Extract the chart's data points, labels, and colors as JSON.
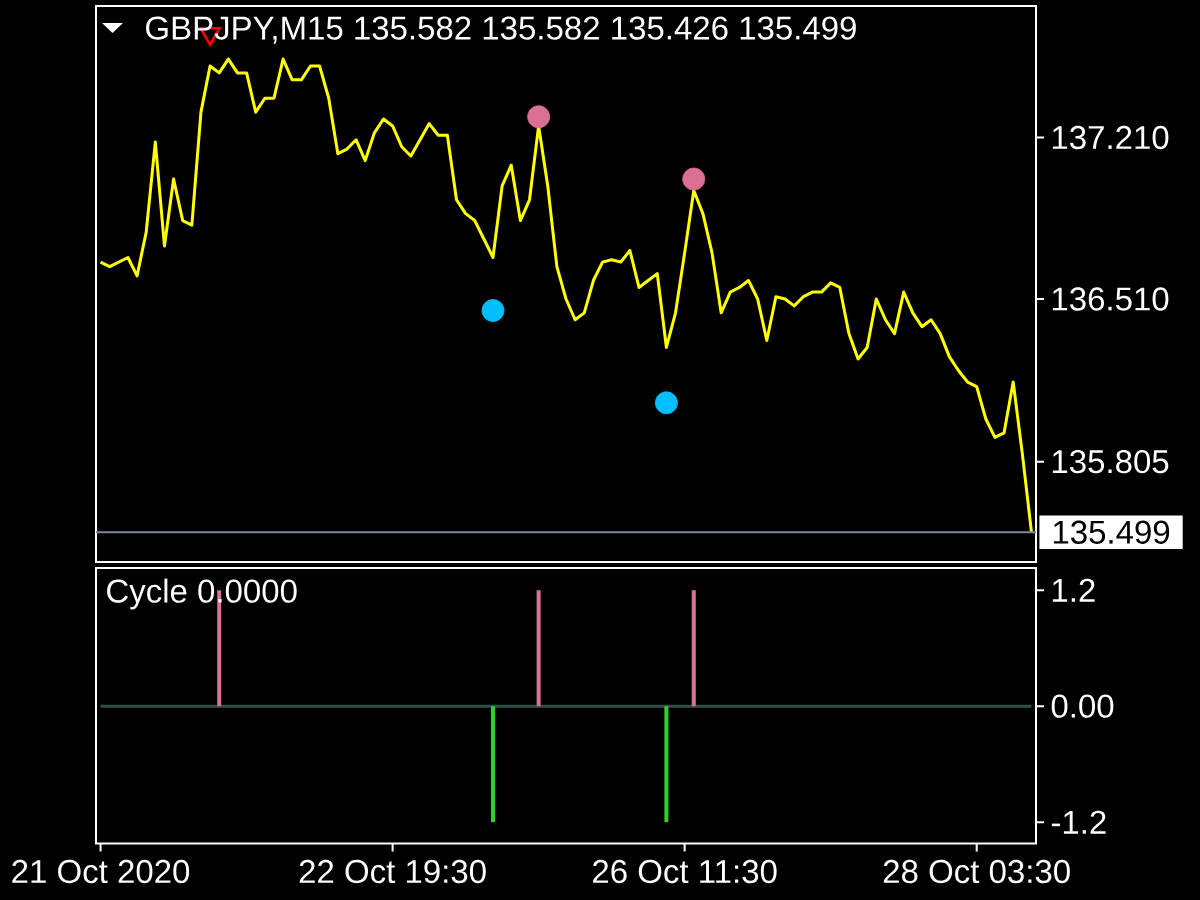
{
  "chart_data": [
    {
      "type": "line",
      "title": "GBPJPY,M15 135.582 135.582 135.426 135.499",
      "ylim": [
        135.37,
        137.78
      ],
      "categories": [
        null,
        null,
        null,
        null,
        null,
        null,
        null,
        null,
        null,
        null,
        null,
        null,
        null,
        null,
        null,
        null,
        null,
        null,
        null,
        null,
        null,
        null,
        null,
        null,
        null,
        null,
        null,
        null,
        null,
        null,
        null,
        null,
        null,
        null,
        null,
        null,
        null,
        null,
        null,
        null,
        null,
        null,
        null,
        null,
        null,
        null,
        null,
        null,
        null,
        null,
        null,
        null,
        null,
        null,
        null,
        null,
        null,
        null,
        null,
        null,
        null,
        null,
        null,
        null,
        null,
        null,
        null,
        null,
        null,
        null,
        null,
        null,
        null,
        null,
        null,
        null,
        null,
        null,
        null,
        null,
        null,
        null,
        null,
        null,
        null,
        null,
        null,
        null,
        null,
        null,
        null,
        null,
        null,
        null,
        null,
        null,
        null,
        null,
        null,
        null,
        null,
        null,
        null
      ],
      "yticks": [
        {
          "value": 137.21,
          "label": "137.210"
        },
        {
          "value": 136.51,
          "label": "136.510"
        },
        {
          "value": 135.805,
          "label": "135.805"
        }
      ],
      "ref_lines": [
        {
          "axis": "y",
          "value": 135.499,
          "label": "135.499",
          "color": "#778899"
        }
      ],
      "series": [
        {
          "color": "#ffff00",
          "values": [
            136.67,
            136.65,
            136.67,
            136.69,
            136.61,
            136.8,
            137.19,
            136.74,
            137.03,
            136.85,
            136.83,
            137.32,
            137.52,
            137.49,
            137.55,
            137.49,
            137.49,
            137.32,
            137.38,
            137.38,
            137.55,
            137.46,
            137.46,
            137.52,
            137.52,
            137.38,
            137.14,
            137.16,
            137.2,
            137.11,
            137.23,
            137.29,
            137.26,
            137.17,
            137.13,
            137.2,
            137.27,
            137.22,
            137.22,
            136.94,
            136.88,
            136.85,
            136.77,
            136.69,
            137.0,
            137.09,
            136.85,
            136.94,
            137.26,
            137.0,
            136.65,
            136.51,
            136.42,
            136.45,
            136.59,
            136.67,
            136.68,
            136.67,
            136.72,
            136.56,
            136.59,
            136.62,
            136.3,
            136.45,
            136.71,
            136.98,
            136.88,
            136.71,
            136.45,
            136.54,
            136.56,
            136.59,
            136.51,
            136.33,
            136.52,
            136.51,
            136.48,
            136.52,
            136.54,
            136.54,
            136.58,
            136.56,
            136.36,
            136.25,
            136.3,
            136.51,
            136.42,
            136.36,
            136.54,
            136.45,
            136.39,
            136.42,
            136.36,
            136.26,
            136.2,
            136.15,
            136.13,
            135.99,
            135.91,
            135.93,
            136.15,
            135.84,
            135.5
          ]
        },
        {
          "type": "scatter",
          "color": "#db7093",
          "marker": "circle",
          "values": [
            null,
            null,
            null,
            null,
            null,
            null,
            null,
            null,
            null,
            null,
            null,
            null,
            null,
            null,
            null,
            null,
            null,
            null,
            null,
            null,
            null,
            null,
            null,
            null,
            null,
            null,
            null,
            null,
            null,
            null,
            null,
            null,
            null,
            null,
            null,
            null,
            null,
            null,
            null,
            null,
            null,
            null,
            null,
            null,
            null,
            null,
            null,
            null,
            137.3,
            null,
            null,
            null,
            null,
            null,
            null,
            null,
            null,
            null,
            null,
            null,
            null,
            null,
            null,
            null,
            null,
            137.03,
            null,
            null,
            null,
            null,
            null,
            null,
            null,
            null,
            null,
            null,
            null,
            null,
            null,
            null,
            null,
            null,
            null,
            null,
            null,
            null,
            null,
            null,
            null,
            null,
            null,
            null,
            null,
            null,
            null,
            null,
            null,
            null,
            null,
            null,
            null,
            null,
            null
          ]
        },
        {
          "type": "scatter",
          "color": "#00bfff",
          "marker": "circle",
          "values": [
            null,
            null,
            null,
            null,
            null,
            null,
            null,
            null,
            null,
            null,
            null,
            null,
            null,
            null,
            null,
            null,
            null,
            null,
            null,
            null,
            null,
            null,
            null,
            null,
            null,
            null,
            null,
            null,
            null,
            null,
            null,
            null,
            null,
            null,
            null,
            null,
            null,
            null,
            null,
            null,
            null,
            null,
            null,
            136.46,
            null,
            null,
            null,
            null,
            null,
            null,
            null,
            null,
            null,
            null,
            null,
            null,
            null,
            null,
            null,
            null,
            null,
            null,
            136.06,
            null,
            null,
            null,
            null,
            null,
            null,
            null,
            null,
            null,
            null,
            null,
            null,
            null,
            null,
            null,
            null,
            null,
            null,
            null,
            null,
            null,
            null,
            null,
            null,
            null,
            null,
            null,
            null,
            null,
            null,
            null,
            null,
            null,
            null,
            null,
            null,
            null,
            null,
            null,
            null
          ]
        },
        {
          "type": "scatter",
          "color": "#ff0000",
          "marker": "triangle",
          "values": [
            null,
            null,
            null,
            null,
            null,
            null,
            null,
            null,
            null,
            null,
            null,
            null,
            137.66,
            null,
            null,
            null,
            null,
            null,
            null,
            null,
            null,
            null,
            null,
            null,
            null,
            null,
            null,
            null,
            null,
            null,
            null,
            null,
            null,
            null,
            null,
            null,
            null,
            null,
            null,
            null,
            null,
            null,
            null,
            null,
            null,
            null,
            null,
            null,
            null,
            null,
            null,
            null,
            null,
            null,
            null,
            null,
            null,
            null,
            null,
            null,
            null,
            null,
            null,
            null,
            null,
            null,
            null,
            null,
            null,
            null,
            null,
            null,
            null,
            null,
            null,
            null,
            null,
            null,
            null,
            null,
            null,
            null,
            null,
            null,
            null,
            null,
            null,
            null,
            null,
            null,
            null,
            null,
            null,
            null,
            null,
            null,
            null,
            null,
            null,
            null,
            null,
            null,
            null
          ]
        }
      ]
    },
    {
      "type": "bar",
      "title": "Cycle 0.0000",
      "ylim": [
        -1.42,
        1.43
      ],
      "categories": [
        "21 Oct 2020",
        null,
        null,
        null,
        null,
        null,
        null,
        null,
        null,
        null,
        null,
        null,
        null,
        null,
        null,
        null,
        null,
        null,
        null,
        null,
        null,
        null,
        null,
        null,
        null,
        null,
        null,
        null,
        null,
        null,
        null,
        null,
        "22 Oct 19:30",
        null,
        null,
        null,
        null,
        null,
        null,
        null,
        null,
        null,
        null,
        null,
        null,
        null,
        null,
        null,
        null,
        null,
        null,
        null,
        null,
        null,
        null,
        null,
        null,
        null,
        null,
        null,
        null,
        null,
        null,
        null,
        "26 Oct 11:30",
        null,
        null,
        null,
        null,
        null,
        null,
        null,
        null,
        null,
        null,
        null,
        null,
        null,
        null,
        null,
        null,
        null,
        null,
        null,
        null,
        null,
        null,
        null,
        null,
        null,
        null,
        null,
        null,
        null,
        null,
        null,
        "28 Oct 03:30",
        null,
        null,
        null,
        null,
        null,
        null
      ],
      "yticks": [
        1.2,
        {
          "value": 0,
          "label": "0.00"
        },
        -1.2
      ],
      "series": [
        {
          "type": "line",
          "color": "#2f4f4f",
          "values": [
            0,
            0,
            0,
            0,
            0,
            0,
            0,
            0,
            0,
            0,
            0,
            0,
            0,
            0,
            0,
            0,
            0,
            0,
            0,
            0,
            0,
            0,
            0,
            0,
            0,
            0,
            0,
            0,
            0,
            0,
            0,
            0,
            0,
            0,
            0,
            0,
            0,
            0,
            0,
            0,
            0,
            0,
            0,
            0,
            0,
            0,
            0,
            0,
            0,
            0,
            0,
            0,
            0,
            0,
            0,
            0,
            0,
            0,
            0,
            0,
            0,
            0,
            0,
            0,
            0,
            0,
            0,
            0,
            0,
            0,
            0,
            0,
            0,
            0,
            0,
            0,
            0,
            0,
            0,
            0,
            0,
            0,
            0,
            0,
            0,
            0,
            0,
            0,
            0,
            0,
            0,
            0,
            0,
            0,
            0,
            0,
            0,
            0,
            0,
            0,
            0,
            0,
            0
          ]
        },
        {
          "color": "#db7093",
          "values": [
            null,
            null,
            null,
            null,
            null,
            null,
            null,
            null,
            null,
            null,
            null,
            null,
            null,
            1.2,
            null,
            null,
            null,
            null,
            null,
            null,
            null,
            null,
            null,
            null,
            null,
            null,
            null,
            null,
            null,
            null,
            null,
            null,
            null,
            null,
            null,
            null,
            null,
            null,
            null,
            null,
            null,
            null,
            null,
            null,
            null,
            null,
            null,
            null,
            1.2,
            null,
            null,
            null,
            null,
            null,
            null,
            null,
            null,
            null,
            null,
            null,
            null,
            null,
            null,
            null,
            null,
            1.2,
            null,
            null,
            null,
            null,
            null,
            null,
            null,
            null,
            null,
            null,
            null,
            null,
            null,
            null,
            null,
            null,
            null,
            null,
            null,
            null,
            null,
            null,
            null,
            null,
            null,
            null,
            null,
            null,
            null,
            null,
            null,
            null,
            null,
            null,
            null,
            null,
            null
          ]
        },
        {
          "color": "#32cd32",
          "values": [
            null,
            null,
            null,
            null,
            null,
            null,
            null,
            null,
            null,
            null,
            null,
            null,
            null,
            null,
            null,
            null,
            null,
            null,
            null,
            null,
            null,
            null,
            null,
            null,
            null,
            null,
            null,
            null,
            null,
            null,
            null,
            null,
            null,
            null,
            null,
            null,
            null,
            null,
            null,
            null,
            null,
            null,
            null,
            -1.2,
            null,
            null,
            null,
            null,
            null,
            null,
            null,
            null,
            null,
            null,
            null,
            null,
            null,
            null,
            null,
            null,
            null,
            null,
            -1.2,
            null,
            null,
            null,
            null,
            null,
            null,
            null,
            null,
            null,
            null,
            null,
            null,
            null,
            null,
            null,
            null,
            null,
            null,
            null,
            null,
            null,
            null,
            null,
            null,
            null,
            null,
            null,
            null,
            null,
            null,
            null,
            null,
            null,
            null,
            null,
            null,
            null,
            null,
            null,
            null
          ]
        }
      ]
    }
  ]
}
